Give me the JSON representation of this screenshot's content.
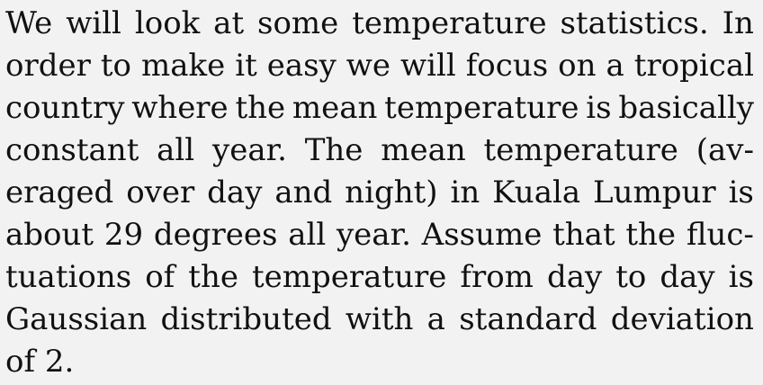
{
  "document": {
    "lines": [
      "We will look at some temperature statistics.  In",
      "order to make it easy we will focus on a tropical",
      "country where the mean temperature is basically",
      "constant all year.  The mean temperature (av-",
      "eraged over day and night) in Kuala Lumpur is",
      "about 29 degrees all year.  Assume that the fluc-",
      "tuations of the temperature from day to day is",
      "Gaussian distributed with a standard deviation",
      "of 2."
    ]
  }
}
